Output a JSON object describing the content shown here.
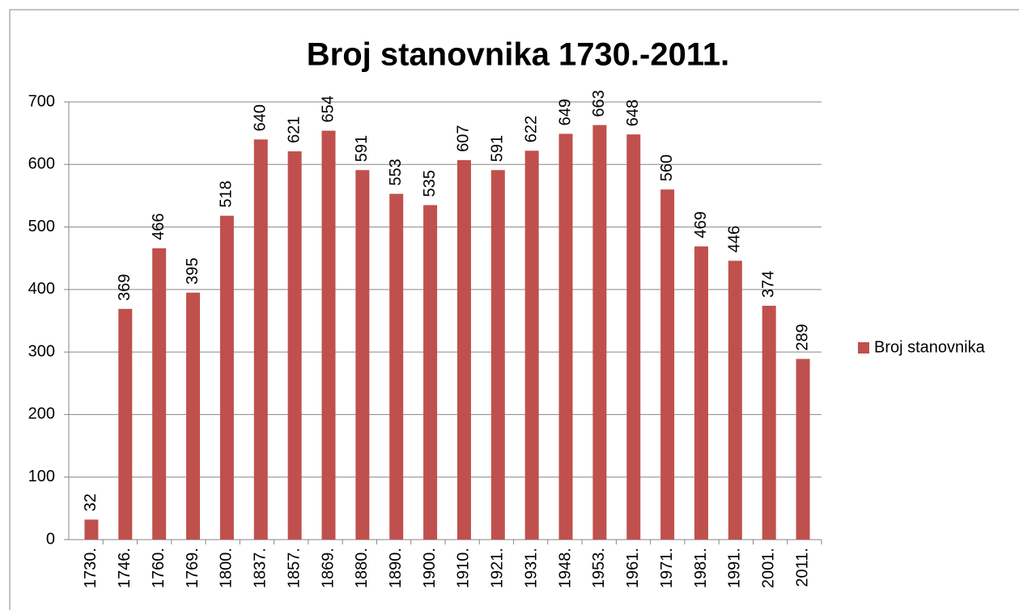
{
  "chart_data": {
    "type": "bar",
    "title": "Broj stanovnika 1730.-2011.",
    "categories": [
      "1730.",
      "1746.",
      "1760.",
      "1769.",
      "1800.",
      "1837.",
      "1857.",
      "1869.",
      "1880.",
      "1890.",
      "1900.",
      "1910.",
      "1921.",
      "1931.",
      "1948.",
      "1953.",
      "1961.",
      "1971.",
      "1981.",
      "1991.",
      "2001.",
      "2011."
    ],
    "series": [
      {
        "name": "Broj stanovnika",
        "color": "#c0504d",
        "values": [
          32,
          369,
          466,
          395,
          518,
          640,
          621,
          654,
          591,
          553,
          535,
          607,
          591,
          622,
          649,
          663,
          648,
          560,
          469,
          446,
          374,
          289
        ]
      }
    ],
    "ylim": [
      0,
      700
    ],
    "yticks": [
      0,
      100,
      200,
      300,
      400,
      500,
      600,
      700
    ],
    "grid": true,
    "legend": "right"
  }
}
